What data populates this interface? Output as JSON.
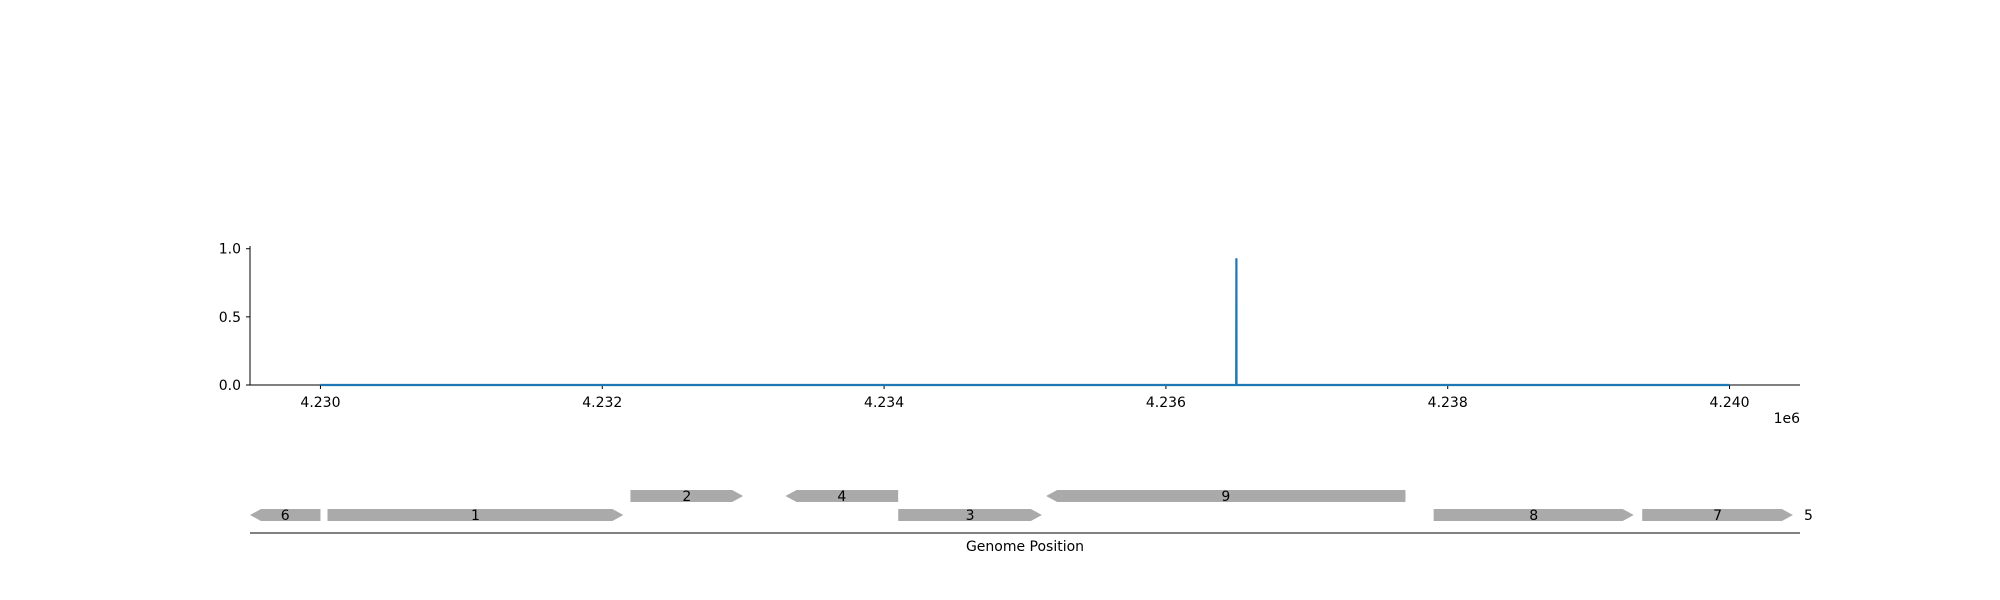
{
  "chart_data": [
    {
      "type": "line",
      "x_offset_label": "1e6",
      "xlim": [
        4229500,
        4240500
      ],
      "ylim": [
        0,
        1.02
      ],
      "x_ticks": [
        4230000,
        4232000,
        4234000,
        4236000,
        4238000,
        4240000
      ],
      "x_tick_labels": [
        "4.230",
        "4.232",
        "4.234",
        "4.236",
        "4.238",
        "4.240"
      ],
      "y_ticks": [
        0.0,
        0.5,
        1.0
      ],
      "y_tick_labels": [
        "0.0",
        "0.5",
        "1.0"
      ],
      "grid": false,
      "color": "#1f77b4",
      "x": [
        4230000,
        4236499,
        4236500,
        4236501,
        4240000
      ],
      "y": [
        0,
        0,
        0.93,
        0,
        0
      ]
    },
    {
      "type": "gene-track",
      "xlabel": "Genome Position",
      "xlim": [
        4229500,
        4240500
      ],
      "color": "#aaaaaa",
      "genes": [
        {
          "label": "6",
          "start": 4229500,
          "end": 4230000,
          "strand": "-",
          "row": 0
        },
        {
          "label": "1",
          "start": 4230050,
          "end": 4232150,
          "strand": "+",
          "row": 0
        },
        {
          "label": "2",
          "start": 4232200,
          "end": 4233000,
          "strand": "+",
          "row": 1
        },
        {
          "label": "4",
          "start": 4233300,
          "end": 4234100,
          "strand": "-",
          "row": 1
        },
        {
          "label": "3",
          "start": 4234100,
          "end": 4235120,
          "strand": "+",
          "row": 0
        },
        {
          "label": "9",
          "start": 4235150,
          "end": 4237700,
          "strand": "-",
          "row": 1
        },
        {
          "label": "8",
          "start": 4237900,
          "end": 4239320,
          "strand": "+",
          "row": 0
        },
        {
          "label": "7",
          "start": 4239380,
          "end": 4240450,
          "strand": "+",
          "row": 0
        },
        {
          "label": "5",
          "start": 4240500,
          "end": 4240500,
          "strand": "+",
          "row": 0,
          "outside": true
        }
      ]
    }
  ]
}
